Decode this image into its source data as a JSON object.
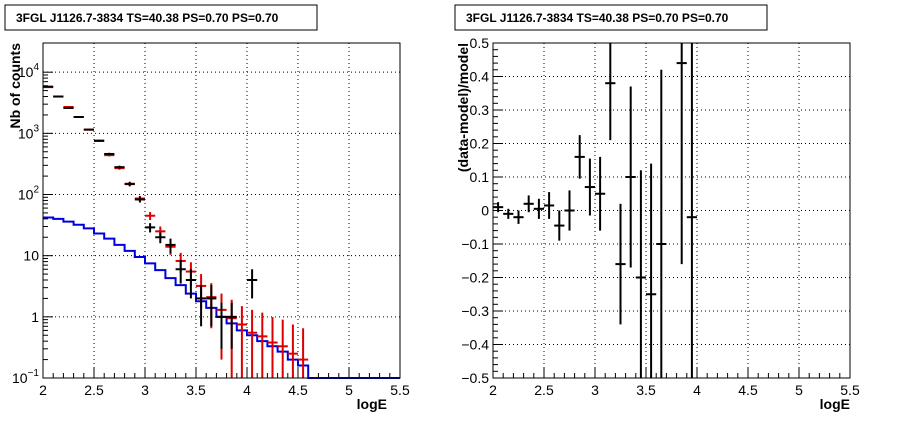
{
  "colors": {
    "data": "#000000",
    "model_points": "#dd0000",
    "source_model": "#0000dd"
  },
  "chart_data": [
    {
      "type": "line",
      "title": "3FGL J1126.7-3834 TS=40.38 PS=0.70 PS=0.70",
      "xlabel": "logE",
      "ylabel": "Nb of counts",
      "xlim": [
        2,
        5.5
      ],
      "ylim": [
        0.1,
        30000
      ],
      "yscale": "log",
      "grid": true,
      "x_ticks": [
        "2",
        "2.5",
        "3",
        "3.5",
        "4",
        "4.5",
        "5",
        "5.5"
      ],
      "y_ticks": [
        "10^{-1}",
        "1",
        "10",
        "10^{2}",
        "10^{3}",
        "10^{4}"
      ],
      "bin_edges": [
        2.0,
        2.1,
        2.2,
        2.3,
        2.4,
        2.5,
        2.6,
        2.7,
        2.8,
        2.9,
        3.0,
        3.1,
        3.2,
        3.3,
        3.4,
        3.5,
        3.6,
        3.7,
        3.8,
        3.9,
        4.0,
        4.1,
        4.2,
        4.3,
        4.4,
        4.5,
        4.6,
        4.7,
        4.8,
        4.9,
        5.0,
        5.1,
        5.2,
        5.3,
        5.4,
        5.5
      ],
      "series": [
        {
          "role": "data",
          "x": [
            2.05,
            2.15,
            2.25,
            2.35,
            2.45,
            2.55,
            2.65,
            2.75,
            2.85,
            2.95,
            3.05,
            3.15,
            3.25,
            3.35,
            3.45,
            3.55,
            3.65,
            3.75,
            3.85,
            4.05
          ],
          "y": [
            5800,
            4000,
            2600,
            1850,
            1150,
            760,
            460,
            280,
            148,
            83,
            29,
            20,
            15,
            6,
            4,
            2,
            2,
            1,
            1,
            4
          ],
          "yerr_low": [
            76,
            63,
            51,
            43,
            34,
            27,
            21,
            16,
            12,
            9,
            5,
            4,
            4,
            2.5,
            2,
            1.3,
            1.3,
            0.7,
            0.7,
            2
          ],
          "yerr_high": [
            76,
            63,
            51,
            43,
            34,
            27,
            21,
            16,
            12,
            9,
            5,
            4,
            4,
            2.5,
            2,
            1.3,
            1.3,
            0.7,
            0.7,
            2
          ]
        },
        {
          "role": "model",
          "x": [
            2.05,
            2.15,
            2.25,
            2.35,
            2.45,
            2.55,
            2.65,
            2.75,
            2.85,
            2.95,
            3.05,
            3.15,
            3.25,
            3.35,
            3.45,
            3.55,
            3.65,
            3.75,
            3.85,
            3.95,
            4.05,
            4.15,
            4.25,
            4.35,
            4.45,
            4.55
          ],
          "y": [
            5700,
            4000,
            2700,
            1850,
            1150,
            750,
            440,
            270,
            150,
            86,
            45,
            25,
            14,
            8.2,
            5.5,
            3.2,
            2.1,
            1.3,
            0.95,
            0.75,
            0.55,
            0.48,
            0.38,
            0.33,
            0.25,
            0.2
          ],
          "yerr_low": [
            75,
            63,
            52,
            43,
            34,
            27,
            21,
            16,
            12,
            9,
            6.7,
            5,
            3.7,
            2.9,
            2.3,
            1.8,
            1.45,
            1.1,
            0.95,
            0.75,
            0.5,
            0.45,
            0.36,
            0.31,
            0.24,
            0.19
          ],
          "yerr_high": [
            75,
            63,
            52,
            43,
            34,
            27,
            21,
            16,
            12,
            9,
            6.7,
            5,
            3.7,
            2.9,
            2.3,
            1.8,
            1.45,
            1.1,
            0.95,
            0.75,
            0.75,
            0.69,
            0.61,
            0.57,
            0.5,
            0.45
          ]
        },
        {
          "role": "source_model",
          "x": [
            2.05,
            2.15,
            2.25,
            2.35,
            2.45,
            2.55,
            2.65,
            2.75,
            2.85,
            2.95,
            3.05,
            3.15,
            3.25,
            3.35,
            3.45,
            3.55,
            3.65,
            3.75,
            3.85,
            3.95,
            4.05,
            4.15,
            4.25,
            4.35,
            4.45,
            4.55,
            4.65,
            4.75,
            4.85,
            4.95,
            5.05,
            5.15,
            5.25,
            5.35,
            5.45
          ],
          "y": [
            42,
            40,
            36,
            32,
            28,
            23,
            19,
            15,
            12,
            9.5,
            7.5,
            5.8,
            4.3,
            3.3,
            2.4,
            1.8,
            1.4,
            1.0,
            0.78,
            0.6,
            0.5,
            0.4,
            0.33,
            0.27,
            0.2,
            0.16,
            0.1,
            0.1,
            0.1,
            0.1,
            0.1,
            0.1,
            0.1,
            0.1,
            0.1
          ]
        }
      ]
    },
    {
      "type": "scatter",
      "title": "3FGL J1126.7-3834 TS=40.38 PS=0.70 PS=0.70",
      "xlabel": "logE",
      "ylabel": "(data-model)/model",
      "xlim": [
        2,
        5.5
      ],
      "ylim": [
        -0.5,
        0.5
      ],
      "grid": true,
      "x_ticks": [
        "2",
        "2.5",
        "3",
        "3.5",
        "4",
        "4.5",
        "5",
        "5.5"
      ],
      "y_ticks": [
        "−0.5",
        "−0.4",
        "−0.3",
        "−0.2",
        "−0.1",
        "0",
        "0.1",
        "0.2",
        "0.3",
        "0.4",
        "0.5"
      ],
      "series": [
        {
          "role": "residuals",
          "x": [
            2.05,
            2.15,
            2.25,
            2.35,
            2.45,
            2.55,
            2.65,
            2.75,
            2.85,
            2.95,
            3.05,
            3.15,
            3.25,
            3.35,
            3.45,
            3.55,
            3.65,
            3.85,
            3.95
          ],
          "y": [
            0.01,
            -0.01,
            -0.02,
            0.02,
            0.005,
            0.015,
            -0.045,
            0.0,
            0.16,
            0.07,
            0.05,
            0.38,
            -0.16,
            0.1,
            -0.2,
            -0.25,
            -0.1,
            0.44,
            -0.02
          ],
          "yerr": [
            0.015,
            0.015,
            0.02,
            0.025,
            0.03,
            0.04,
            0.045,
            0.06,
            0.065,
            0.085,
            0.11,
            0.17,
            0.18,
            0.27,
            0.32,
            0.39,
            0.52,
            0.6,
            0.9
          ]
        }
      ]
    }
  ]
}
